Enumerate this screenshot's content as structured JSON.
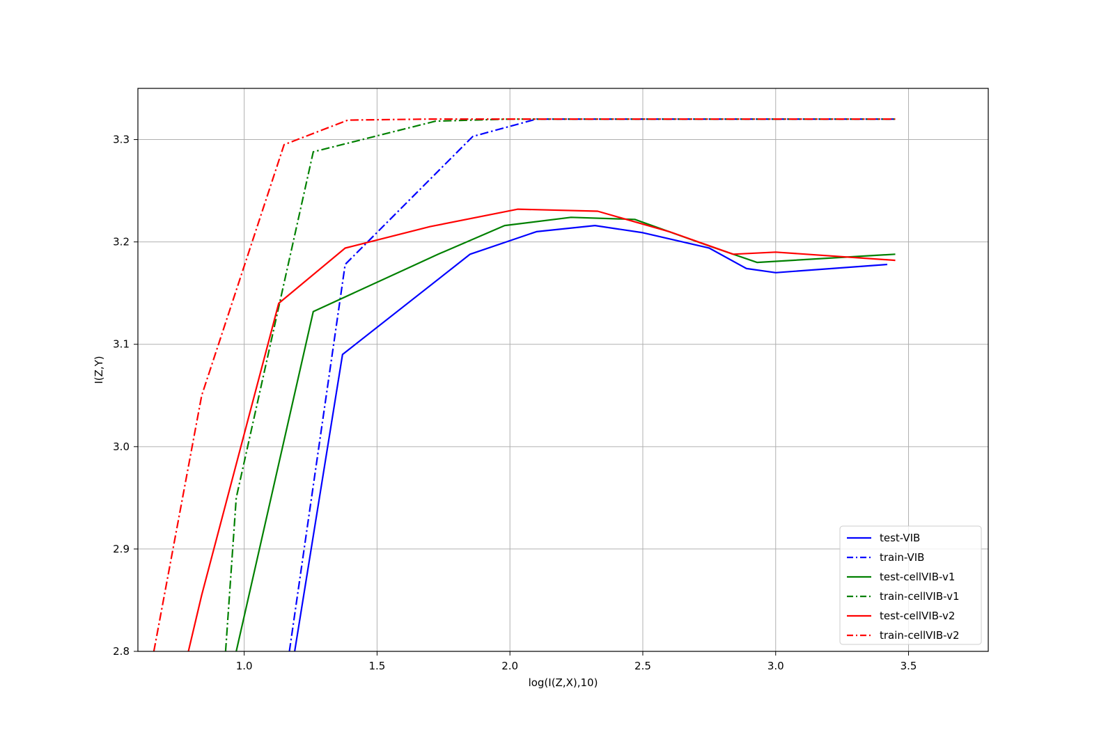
{
  "chart_data": {
    "type": "line",
    "title": "",
    "xlabel": "log(I(Z,X),10)",
    "ylabel": "I(Z,Y)",
    "xlim": [
      0.6,
      3.8
    ],
    "ylim": [
      2.8,
      3.35
    ],
    "xticks": [
      1.0,
      1.5,
      2.0,
      2.5,
      3.0,
      3.5
    ],
    "xtick_labels": [
      "1.0",
      "1.5",
      "2.0",
      "2.5",
      "3.0",
      "3.5"
    ],
    "yticks": [
      2.8,
      2.9,
      3.0,
      3.1,
      3.2,
      3.3
    ],
    "ytick_labels": [
      "2.8",
      "2.9",
      "3.0",
      "3.1",
      "3.2",
      "3.3"
    ],
    "grid": true,
    "legend_position": "lower right",
    "series": [
      {
        "name": "test-VIB",
        "color": "#0000ff",
        "linestyle": "solid",
        "x": [
          1.19,
          1.37,
          1.85,
          2.1,
          2.32,
          2.5,
          2.75,
          2.89,
          3.0,
          3.42
        ],
        "y": [
          2.8,
          3.09,
          3.188,
          3.21,
          3.216,
          3.209,
          3.194,
          3.174,
          3.17,
          3.178
        ]
      },
      {
        "name": "train-VIB",
        "color": "#0000ff",
        "linestyle": "dashdot",
        "x": [
          1.17,
          1.38,
          1.86,
          2.1,
          3.45
        ],
        "y": [
          2.8,
          3.178,
          3.303,
          3.32,
          3.32
        ]
      },
      {
        "name": "test-cellVIB-v1",
        "color": "#008000",
        "linestyle": "solid",
        "x": [
          0.97,
          1.26,
          1.73,
          1.98,
          2.23,
          2.47,
          2.75,
          2.93,
          3.45
        ],
        "y": [
          2.8,
          3.132,
          3.188,
          3.216,
          3.224,
          3.222,
          3.196,
          3.18,
          3.188
        ]
      },
      {
        "name": "train-cellVIB-v1",
        "color": "#008000",
        "linestyle": "dashdot",
        "x": [
          0.93,
          0.97,
          1.26,
          1.72,
          2.0,
          3.45
        ],
        "y": [
          2.8,
          2.95,
          3.288,
          3.318,
          3.32,
          3.32
        ]
      },
      {
        "name": "test-cellVIB-v2",
        "color": "#ff0000",
        "linestyle": "solid",
        "x": [
          0.79,
          0.84,
          1.13,
          1.38,
          1.7,
          2.03,
          2.33,
          2.6,
          2.84,
          3.0,
          3.45
        ],
        "y": [
          2.8,
          2.855,
          3.14,
          3.194,
          3.215,
          3.232,
          3.23,
          3.21,
          3.188,
          3.19,
          3.182
        ]
      },
      {
        "name": "train-cellVIB-v2",
        "color": "#ff0000",
        "linestyle": "dashdot",
        "x": [
          0.66,
          0.84,
          1.15,
          1.39,
          1.7,
          3.45
        ],
        "y": [
          2.8,
          3.05,
          3.295,
          3.319,
          3.32,
          3.32
        ]
      }
    ]
  }
}
